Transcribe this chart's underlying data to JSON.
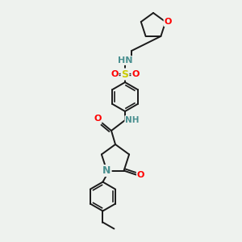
{
  "background_color": "#eef2ee",
  "bond_color": "#1a1a1a",
  "atom_colors": {
    "N": "#4a9090",
    "O": "#ff0000",
    "S": "#cccc00",
    "C": "#1a1a1a"
  },
  "fig_size": [
    3.0,
    3.0
  ],
  "dpi": 100
}
